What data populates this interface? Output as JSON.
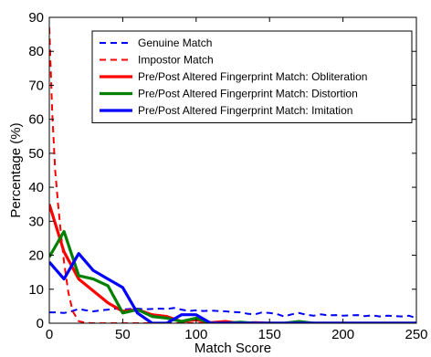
{
  "chart_data": {
    "type": "line",
    "title": "",
    "xlabel": "Match Score",
    "ylabel": "Percentage (%)",
    "xlim": [
      0,
      250
    ],
    "ylim": [
      0,
      90
    ],
    "xticks": [
      0,
      50,
      100,
      150,
      200,
      250
    ],
    "yticks": [
      0,
      10,
      20,
      30,
      40,
      50,
      60,
      70,
      80,
      90
    ],
    "grid": false,
    "legend_position": "top-right",
    "series": [
      {
        "name": "Genuine Match",
        "color": "#0000ff",
        "style": "dashed",
        "x": [
          0,
          5,
          10,
          15,
          20,
          25,
          30,
          35,
          40,
          45,
          50,
          55,
          60,
          65,
          70,
          75,
          80,
          85,
          90,
          95,
          100,
          105,
          110,
          115,
          120,
          125,
          130,
          135,
          140,
          145,
          150,
          155,
          160,
          165,
          170,
          175,
          180,
          185,
          190,
          195,
          200,
          205,
          210,
          215,
          220,
          225,
          230,
          235,
          240,
          245,
          250
        ],
        "y": [
          3.2,
          3.2,
          3.0,
          3.5,
          4.2,
          3.8,
          3.5,
          3.8,
          4.0,
          4.3,
          4.0,
          4.2,
          4.3,
          4.1,
          4.2,
          4.3,
          4.2,
          4.5,
          4.0,
          3.6,
          3.8,
          3.6,
          3.7,
          3.6,
          3.5,
          3.3,
          3.2,
          2.8,
          2.6,
          3.2,
          3.0,
          2.7,
          2.0,
          2.6,
          3.0,
          2.5,
          2.2,
          2.6,
          2.3,
          2.4,
          2.2,
          2.3,
          2.4,
          2.1,
          2.3,
          2.0,
          2.2,
          2.1,
          2.0,
          2.2,
          1.5
        ]
      },
      {
        "name": "Impostor Match",
        "color": "#ff0000",
        "style": "dashed",
        "x": [
          0,
          2,
          4,
          6,
          8,
          10,
          13,
          16,
          20,
          25,
          30,
          50,
          100,
          150,
          200,
          250
        ],
        "y": [
          87,
          62,
          45,
          35,
          26,
          18,
          9,
          3.5,
          0.6,
          0.1,
          0,
          0,
          0,
          0,
          0,
          0
        ]
      },
      {
        "name": "Pre/Post Altered Fingerprint Match: Obliteration",
        "color": "#ff0000",
        "style": "solid",
        "x": [
          0,
          10,
          20,
          30,
          40,
          50,
          60,
          70,
          80,
          90,
          100,
          110,
          120,
          130,
          140,
          150,
          160,
          170,
          180,
          190,
          200,
          210,
          220,
          230,
          240,
          250
        ],
        "y": [
          35,
          21,
          13,
          9.5,
          6,
          3.5,
          4,
          2.5,
          2,
          0.5,
          1,
          0.2,
          0.5,
          0,
          0.2,
          0,
          0,
          0,
          0,
          0,
          0,
          0,
          0,
          0,
          0,
          0
        ]
      },
      {
        "name": "Pre/Post Altered Fingerprint Match: Distortion",
        "color": "#008000",
        "style": "solid",
        "x": [
          0,
          10,
          20,
          30,
          40,
          50,
          60,
          70,
          80,
          90,
          100,
          110,
          120,
          130,
          140,
          150,
          160,
          170,
          180,
          190,
          200,
          210,
          220,
          230,
          240,
          250
        ],
        "y": [
          19.5,
          27,
          14,
          13,
          11,
          3,
          4,
          2,
          1.5,
          0.5,
          1.5,
          0,
          0,
          0.3,
          0,
          0,
          0,
          0.5,
          0,
          0,
          0,
          0,
          0,
          0,
          0,
          0
        ]
      },
      {
        "name": "Pre/Post Altered Fingerprint Match: Imitation",
        "color": "#0000ff",
        "style": "solid",
        "x": [
          0,
          10,
          20,
          30,
          40,
          50,
          60,
          70,
          80,
          90,
          100,
          110,
          120,
          130,
          140,
          150,
          160,
          170,
          180,
          190,
          200,
          210,
          220,
          230,
          240,
          250
        ],
        "y": [
          18,
          13,
          20.5,
          15.5,
          13,
          10.5,
          3,
          0,
          0,
          2.5,
          2.5,
          0,
          0,
          0,
          0,
          0,
          0,
          0,
          0,
          0,
          0,
          0,
          0,
          0,
          0,
          0
        ]
      }
    ]
  }
}
